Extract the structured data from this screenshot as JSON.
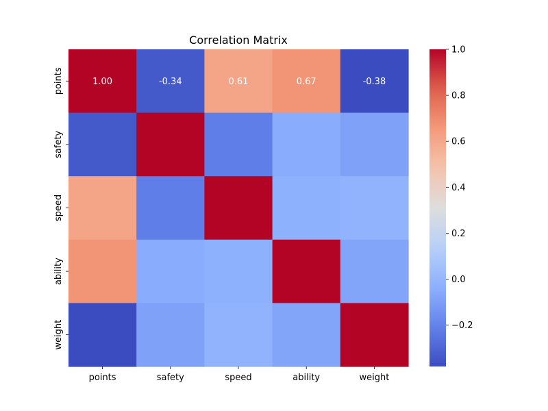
{
  "chart_data": {
    "type": "heatmap",
    "title": "Correlation Matrix",
    "xlabel": "",
    "ylabel": "",
    "x_categories": [
      "points",
      "safety",
      "speed",
      "ability",
      "weight"
    ],
    "y_categories": [
      "points",
      "safety",
      "speed",
      "ability",
      "weight"
    ],
    "values": [
      [
        1.0,
        -0.34,
        0.61,
        0.67,
        -0.38
      ],
      [
        -0.34,
        1.0,
        -0.22,
        -0.05,
        -0.09
      ],
      [
        0.61,
        -0.22,
        1.0,
        -0.03,
        -0.02
      ],
      [
        0.67,
        -0.05,
        -0.03,
        1.0,
        -0.08
      ],
      [
        -0.38,
        -0.09,
        -0.02,
        -0.08,
        1.0
      ]
    ],
    "annotations": [
      [
        "1.00",
        "-0.34",
        "0.61",
        "0.67",
        "-0.38"
      ],
      [
        "",
        "",
        "",
        "",
        ""
      ],
      [
        "",
        "",
        "",
        "",
        ""
      ],
      [
        "",
        "",
        "",
        "",
        ""
      ],
      [
        "",
        "",
        "",
        "",
        ""
      ]
    ],
    "colormap": "coolwarm",
    "vmin": -0.38,
    "vmax": 1.0,
    "colorbar": {
      "ticks": [
        -0.2,
        0.0,
        0.2,
        0.4,
        0.6,
        0.8,
        1.0
      ],
      "tick_labels": [
        "−0.2",
        "0.0",
        "0.2",
        "0.4",
        "0.6",
        "0.8",
        "1.0"
      ]
    }
  }
}
